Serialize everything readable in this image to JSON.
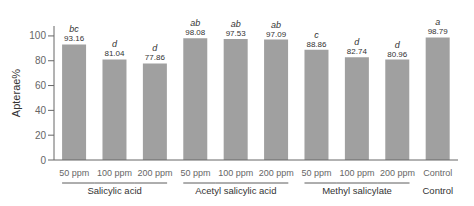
{
  "chart_data": {
    "type": "bar",
    "ylabel": "Apterae%",
    "categories": [
      "50 ppm",
      "100 ppm",
      "200 ppm",
      "50 ppm",
      "100 ppm",
      "200 ppm",
      "50 ppm",
      "100 ppm",
      "200 ppm",
      "Control"
    ],
    "values": [
      93.16,
      81.04,
      77.86,
      98.08,
      97.53,
      97.09,
      88.86,
      82.74,
      80.96,
      98.79
    ],
    "annotations": [
      "bc",
      "d",
      "d",
      "ab",
      "ab",
      "ab",
      "c",
      "d",
      "d",
      "a"
    ],
    "groups": [
      "Salicylic acid",
      "Salicylic acid",
      "Salicylic acid",
      "Acetyl salicylic acid",
      "Acetyl salicylic acid",
      "Acetyl salicylic acid",
      "Methyl salicylate",
      "Methyl salicylate",
      "Methyl salicylate",
      "Control"
    ],
    "color": "#a0a0a0",
    "ylim": [
      0,
      108
    ],
    "yticks": [
      0,
      20,
      40,
      60,
      80,
      100
    ],
    "data_labels": true,
    "grid": false
  }
}
